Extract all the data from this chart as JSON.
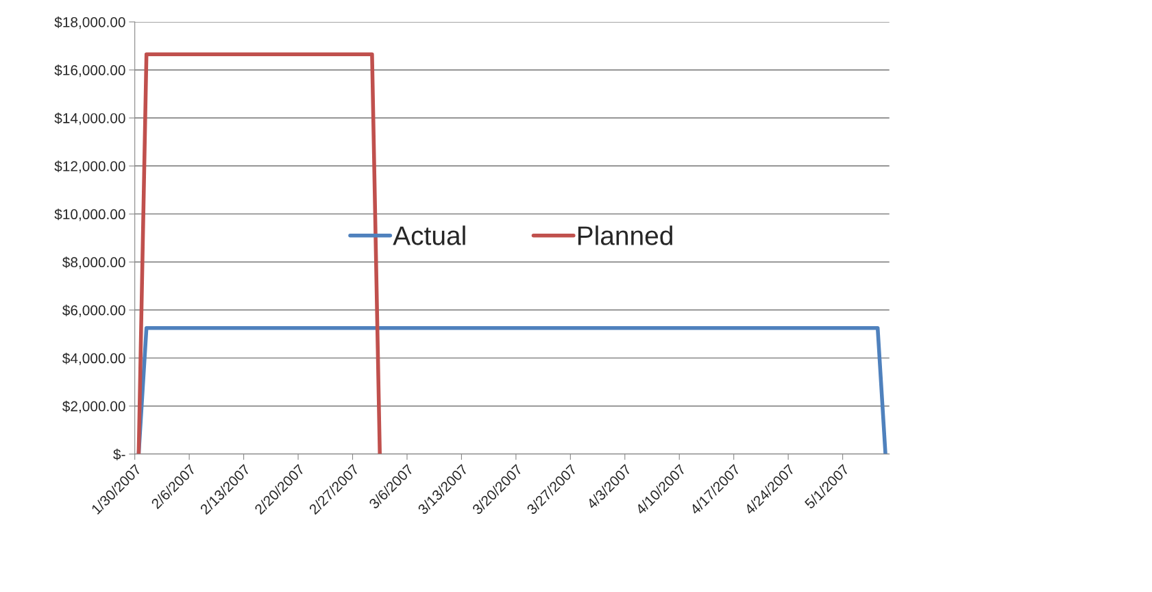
{
  "chart_data": {
    "type": "line",
    "series": [
      {
        "name": "Actual",
        "color": "#4f81bd",
        "x": [
          "2007-01-30T12:00",
          "2007-01-31T12:00",
          "2007-05-05T12:00",
          "2007-05-06T12:00"
        ],
        "values": [
          0,
          5250,
          5250,
          0
        ]
      },
      {
        "name": "Planned",
        "color": "#c0504d",
        "x": [
          "2007-01-30T12:00",
          "2007-01-31T12:00",
          "2007-03-01T12:00",
          "2007-03-02T12:00"
        ],
        "values": [
          0,
          16650,
          16650,
          0
        ]
      }
    ],
    "xlim": [
      "2007-01-30",
      "2007-05-07"
    ],
    "xticks": [
      {
        "value": "2007-01-30",
        "label": "1/30/2007"
      },
      {
        "value": "2007-02-06",
        "label": "2/6/2007"
      },
      {
        "value": "2007-02-13",
        "label": "2/13/2007"
      },
      {
        "value": "2007-02-20",
        "label": "2/20/2007"
      },
      {
        "value": "2007-02-27",
        "label": "2/27/2007"
      },
      {
        "value": "2007-03-06",
        "label": "3/6/2007"
      },
      {
        "value": "2007-03-13",
        "label": "3/13/2007"
      },
      {
        "value": "2007-03-20",
        "label": "3/20/2007"
      },
      {
        "value": "2007-03-27",
        "label": "3/27/2007"
      },
      {
        "value": "2007-04-03",
        "label": "4/3/2007"
      },
      {
        "value": "2007-04-10",
        "label": "4/10/2007"
      },
      {
        "value": "2007-04-17",
        "label": "4/17/2007"
      },
      {
        "value": "2007-04-24",
        "label": "4/24/2007"
      },
      {
        "value": "2007-05-01",
        "label": "5/1/2007"
      }
    ],
    "ylim": [
      0,
      18000
    ],
    "yticks": [
      {
        "value": 0,
        "label": "$-"
      },
      {
        "value": 2000,
        "label": "$2,000.00"
      },
      {
        "value": 4000,
        "label": "$4,000.00"
      },
      {
        "value": 6000,
        "label": "$6,000.00"
      },
      {
        "value": 8000,
        "label": "$8,000.00"
      },
      {
        "value": 10000,
        "label": "$10,000.00"
      },
      {
        "value": 12000,
        "label": "$12,000.00"
      },
      {
        "value": 14000,
        "label": "$14,000.00"
      },
      {
        "value": 16000,
        "label": "$16,000.00"
      },
      {
        "value": 18000,
        "label": "$18,000.00"
      }
    ],
    "grid": "y",
    "legend": "center",
    "marker": "none",
    "line_style": "solid"
  }
}
